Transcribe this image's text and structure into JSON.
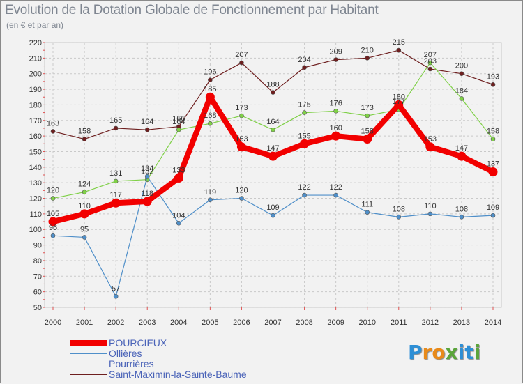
{
  "header": {
    "title": "Evolution de la Dotation Globale de Fonctionnement par Habitant",
    "subtitle": "(en € et par an)"
  },
  "logo": {
    "letters": [
      "P",
      "r",
      "o",
      "x",
      "i",
      "t",
      "i"
    ],
    "colors": [
      "#2d8fd6",
      "#e88a1a",
      "#e88a1a",
      "#5aa53a",
      "#2d8fd6",
      "#2d8fd6",
      "#5aa53a"
    ]
  },
  "chart_data": {
    "type": "line",
    "title": "Evolution de la Dotation Globale de Fonctionnement par Habitant",
    "subtitle": "(en € et par an)",
    "xlabel": "",
    "ylabel": "",
    "x": [
      "2000",
      "2001",
      "2002",
      "2003",
      "2004",
      "2005",
      "2006",
      "2007",
      "2008",
      "2009",
      "2010",
      "2011",
      "2012",
      "2013",
      "2014"
    ],
    "ylim": [
      50,
      220
    ],
    "yticks": [
      50,
      60,
      70,
      80,
      90,
      100,
      110,
      120,
      130,
      140,
      150,
      160,
      170,
      180,
      190,
      200,
      210,
      220
    ],
    "grid": true,
    "legend_position": "bottom-left",
    "series": [
      {
        "name": "Saint-Maximin-la-Sainte-Baume",
        "color": "#6e1f1f",
        "values": [
          163,
          158,
          165,
          164,
          166,
          196,
          207,
          188,
          204,
          209,
          210,
          215,
          203,
          200,
          193
        ],
        "labels": [
          "163",
          "158",
          "165",
          "164",
          "166",
          "196",
          "207",
          "188",
          "204",
          "209",
          "210",
          "215",
          "203",
          "200",
          "193"
        ]
      },
      {
        "name": "Pourrières",
        "color": "#7fd047",
        "values": [
          120,
          124,
          131,
          132,
          164,
          168,
          173,
          164,
          175,
          176,
          173,
          177,
          207,
          184,
          158
        ],
        "labels": [
          "120",
          "124",
          "131",
          "132",
          "164",
          "168",
          "173",
          "164",
          "175",
          "176",
          "173",
          "177",
          "207",
          "184",
          "158"
        ]
      },
      {
        "name": "Ollières",
        "color": "#4f8fc9",
        "values": [
          96,
          95,
          57,
          134,
          104,
          119,
          120,
          109,
          122,
          122,
          111,
          108,
          110,
          108,
          109
        ],
        "labels": [
          "96",
          "95",
          "57",
          "134",
          "104",
          "119",
          "120",
          "109",
          "122",
          "122",
          "111",
          "108",
          "110",
          "108",
          "109"
        ]
      },
      {
        "name": "POURCIEUX",
        "color": "#f20000",
        "values": [
          105,
          110,
          117,
          118,
          133,
          185,
          153,
          147,
          155,
          160,
          158,
          180,
          153,
          147,
          137
        ],
        "labels": [
          "105",
          "110",
          "117",
          "118",
          "133",
          "185",
          "153",
          "147",
          "155",
          "160",
          "158",
          "180",
          "153",
          "147",
          "137"
        ]
      }
    ],
    "legend": [
      {
        "name": "POURCIEUX",
        "color": "#f20000"
      },
      {
        "name": "Ollières",
        "color": "#4f8fc9"
      },
      {
        "name": "Pourrières",
        "color": "#7fd047"
      },
      {
        "name": "Saint-Maximin-la-Sainte-Baume",
        "color": "#6e1f1f"
      }
    ]
  }
}
